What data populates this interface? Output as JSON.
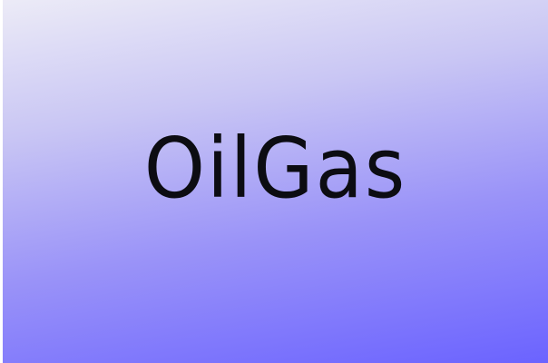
{
  "logo": {
    "text": "OilGas"
  },
  "colors": {
    "gradient_top": "#ecebf7",
    "gradient_bottom": "#6b63ff",
    "text": "#0c0c12"
  }
}
